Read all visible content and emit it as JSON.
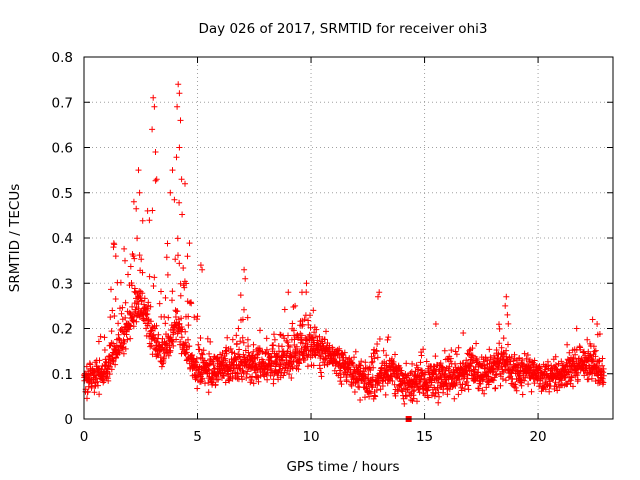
{
  "chart_data": {
    "type": "scatter",
    "title": "Day 026 of 2017, SRMTID for receiver ohi3",
    "xlabel": "GPS time / hours",
    "ylabel": "SRMTID / TECUs",
    "xlim": [
      0,
      23.3
    ],
    "ylim": [
      0,
      0.8
    ],
    "x_ticks": [
      0,
      5,
      10,
      15,
      20
    ],
    "x_tick_labels": [
      "0",
      "5",
      "10",
      "15",
      "20"
    ],
    "y_ticks": [
      0,
      0.1,
      0.2,
      0.3,
      0.4,
      0.5,
      0.6,
      0.7,
      0.8
    ],
    "y_tick_labels": [
      "0",
      "0.1",
      "0.2",
      "0.3",
      "0.4",
      "0.5",
      "0.6",
      "0.7",
      "0.8"
    ],
    "grid": true,
    "marker": "plus",
    "color": "#ff0000",
    "envelope": {
      "hours": [
        0,
        0.5,
        1.0,
        1.3,
        1.5,
        2.0,
        2.3,
        2.5,
        2.8,
        3.0,
        3.1,
        3.2,
        3.5,
        3.8,
        4.0,
        4.1,
        4.2,
        4.4,
        4.8,
        5.0,
        5.2,
        5.5,
        6.0,
        6.5,
        7.0,
        7.2,
        7.5,
        8.0,
        8.5,
        9.0,
        9.5,
        9.8,
        10.0,
        10.5,
        11.0,
        11.5,
        12.0,
        12.5,
        13.0,
        13.5,
        14.0,
        14.5,
        15.0,
        15.5,
        16.0,
        16.5,
        17.0,
        17.5,
        18.0,
        18.5,
        19.0,
        19.5,
        20.0,
        20.5,
        21.0,
        21.5,
        22.0,
        22.5,
        22.9
      ],
      "baseline": [
        0.08,
        0.09,
        0.11,
        0.14,
        0.16,
        0.2,
        0.24,
        0.25,
        0.22,
        0.18,
        0.17,
        0.16,
        0.14,
        0.17,
        0.2,
        0.22,
        0.2,
        0.16,
        0.12,
        0.11,
        0.1,
        0.1,
        0.11,
        0.11,
        0.12,
        0.12,
        0.11,
        0.11,
        0.12,
        0.13,
        0.15,
        0.16,
        0.15,
        0.14,
        0.13,
        0.11,
        0.09,
        0.08,
        0.09,
        0.1,
        0.08,
        0.07,
        0.08,
        0.08,
        0.09,
        0.09,
        0.1,
        0.1,
        0.1,
        0.12,
        0.1,
        0.1,
        0.09,
        0.09,
        0.09,
        0.11,
        0.12,
        0.11,
        0.09
      ],
      "max": [
        0.11,
        0.15,
        0.22,
        0.39,
        0.37,
        0.44,
        0.55,
        0.49,
        0.45,
        0.71,
        0.7,
        0.52,
        0.37,
        0.55,
        0.74,
        0.72,
        0.53,
        0.47,
        0.35,
        0.35,
        0.2,
        0.18,
        0.17,
        0.2,
        0.33,
        0.33,
        0.2,
        0.2,
        0.24,
        0.27,
        0.28,
        0.3,
        0.23,
        0.22,
        0.18,
        0.17,
        0.15,
        0.15,
        0.28,
        0.18,
        0.15,
        0.12,
        0.2,
        0.15,
        0.18,
        0.16,
        0.2,
        0.15,
        0.16,
        0.27,
        0.17,
        0.15,
        0.14,
        0.14,
        0.14,
        0.19,
        0.2,
        0.22,
        0.17
      ],
      "min": [
        0.04,
        0.05,
        0.06,
        0.07,
        0.08,
        0.09,
        0.1,
        0.08,
        0.05,
        0.04,
        0.05,
        0.05,
        0.05,
        0.06,
        0.08,
        0.07,
        0.06,
        0.05,
        0.05,
        0.04,
        0.04,
        0.04,
        0.05,
        0.05,
        0.05,
        0.05,
        0.06,
        0.05,
        0.05,
        0.06,
        0.07,
        0.07,
        0.07,
        0.06,
        0.05,
        0.05,
        0.04,
        0.03,
        0.03,
        0.03,
        0.03,
        0.03,
        0.03,
        0.03,
        0.04,
        0.04,
        0.05,
        0.05,
        0.05,
        0.04,
        0.05,
        0.05,
        0.06,
        0.06,
        0.05,
        0.06,
        0.06,
        0.05,
        0.04
      ]
    },
    "spikes": [
      {
        "x": 1.3,
        "y": 0.38
      },
      {
        "x": 1.4,
        "y": 0.36
      },
      {
        "x": 2.2,
        "y": 0.48
      },
      {
        "x": 2.4,
        "y": 0.55
      },
      {
        "x": 2.45,
        "y": 0.5
      },
      {
        "x": 2.8,
        "y": 0.46
      },
      {
        "x": 3.05,
        "y": 0.71
      },
      {
        "x": 3.1,
        "y": 0.69
      },
      {
        "x": 3.0,
        "y": 0.64
      },
      {
        "x": 3.15,
        "y": 0.59
      },
      {
        "x": 3.2,
        "y": 0.53
      },
      {
        "x": 3.8,
        "y": 0.5
      },
      {
        "x": 3.9,
        "y": 0.55
      },
      {
        "x": 4.15,
        "y": 0.74
      },
      {
        "x": 4.2,
        "y": 0.72
      },
      {
        "x": 4.1,
        "y": 0.69
      },
      {
        "x": 4.25,
        "y": 0.66
      },
      {
        "x": 4.2,
        "y": 0.6
      },
      {
        "x": 4.3,
        "y": 0.53
      },
      {
        "x": 4.45,
        "y": 0.52
      },
      {
        "x": 5.15,
        "y": 0.34
      },
      {
        "x": 5.2,
        "y": 0.33
      },
      {
        "x": 7.05,
        "y": 0.33
      },
      {
        "x": 7.1,
        "y": 0.31
      },
      {
        "x": 7.0,
        "y": 0.22
      },
      {
        "x": 9.0,
        "y": 0.28
      },
      {
        "x": 9.3,
        "y": 0.25
      },
      {
        "x": 9.6,
        "y": 0.28
      },
      {
        "x": 9.8,
        "y": 0.3
      },
      {
        "x": 10.1,
        "y": 0.24
      },
      {
        "x": 13.0,
        "y": 0.28
      },
      {
        "x": 12.95,
        "y": 0.27
      },
      {
        "x": 15.5,
        "y": 0.21
      },
      {
        "x": 16.7,
        "y": 0.19
      },
      {
        "x": 18.6,
        "y": 0.27
      },
      {
        "x": 18.55,
        "y": 0.25
      },
      {
        "x": 18.65,
        "y": 0.23
      },
      {
        "x": 22.4,
        "y": 0.22
      },
      {
        "x": 22.6,
        "y": 0.21
      },
      {
        "x": 21.7,
        "y": 0.2
      }
    ],
    "zero_marker": {
      "x": 14.3,
      "y": 0.0,
      "shape": "square"
    }
  }
}
